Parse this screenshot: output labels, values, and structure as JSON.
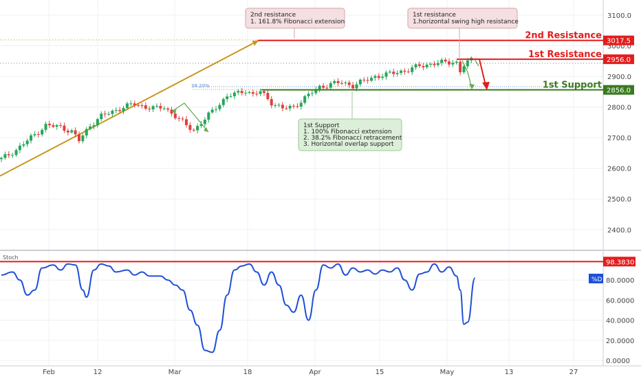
{
  "chart_data": [
    {
      "type": "candlestick",
      "ylim": [
        2350,
        3130
      ],
      "y_ticks": [
        "3100.0",
        "3000.0",
        "2900.0",
        "2800.0",
        "2700.0",
        "2600.0",
        "2500.0",
        "2400.0"
      ],
      "x_ticks": [
        "Feb",
        "12",
        "Mar",
        "18",
        "Apr",
        "15",
        "May",
        "13",
        "27"
      ],
      "price_path": [
        [
          0,
          2630
        ],
        [
          4,
          2660
        ],
        [
          8,
          2700
        ],
        [
          12,
          2740
        ],
        [
          16,
          2735
        ],
        [
          19,
          2720
        ],
        [
          21,
          2690
        ],
        [
          24,
          2740
        ],
        [
          27,
          2770
        ],
        [
          30,
          2785
        ],
        [
          33,
          2800
        ],
        [
          36,
          2810
        ],
        [
          39,
          2800
        ],
        [
          42,
          2795
        ],
        [
          44,
          2800
        ],
        [
          47,
          2770
        ],
        [
          50,
          2740
        ],
        [
          52,
          2725
        ],
        [
          55,
          2760
        ],
        [
          58,
          2800
        ],
        [
          61,
          2835
        ],
        [
          64,
          2845
        ],
        [
          66,
          2855
        ],
        [
          68,
          2840
        ],
        [
          70,
          2850
        ],
        [
          73,
          2815
        ],
        [
          76,
          2795
        ],
        [
          79,
          2800
        ],
        [
          82,
          2830
        ],
        [
          86,
          2865
        ],
        [
          89,
          2875
        ],
        [
          92,
          2880
        ],
        [
          95,
          2870
        ],
        [
          98,
          2885
        ],
        [
          101,
          2900
        ],
        [
          104,
          2905
        ],
        [
          107,
          2915
        ],
        [
          110,
          2920
        ],
        [
          113,
          2935
        ],
        [
          116,
          2940
        ],
        [
          119,
          2945
        ],
        [
          122,
          2948
        ],
        [
          123,
          2945
        ],
        [
          124,
          2915
        ],
        [
          125,
          2935
        ],
        [
          127,
          2955
        ]
      ],
      "levels": [
        {
          "name": "2nd Resistance",
          "value": 3017.5,
          "label": "3017.5",
          "color": "#e21d1d"
        },
        {
          "name": "1st Resistance",
          "value": 2956.0,
          "label": "2956.0",
          "color": "#e21d1d"
        },
        {
          "name": "1st Support",
          "value": 2856.0,
          "label": "2856.0",
          "color": "#3a7a1f"
        }
      ],
      "fib_label": "38.20%",
      "trendline": {
        "from": [
          0,
          2575
        ],
        "to": [
          69,
          3017.5
        ],
        "color": "#c8961e"
      }
    },
    {
      "type": "line",
      "name": "Stoch",
      "legend": "%D",
      "ylim": [
        0,
        102
      ],
      "y_ticks": [
        "80.0000",
        "60.0000",
        "40.0000",
        "20.0000",
        "0.0000"
      ],
      "level": {
        "value": 98.383,
        "label": "98.3830"
      },
      "values": [
        [
          0,
          85
        ],
        [
          3,
          88
        ],
        [
          5,
          80
        ],
        [
          7,
          65
        ],
        [
          9,
          70
        ],
        [
          11,
          92
        ],
        [
          14,
          95
        ],
        [
          16,
          90
        ],
        [
          18,
          96
        ],
        [
          20,
          95
        ],
        [
          22,
          70
        ],
        [
          23,
          63
        ],
        [
          25,
          90
        ],
        [
          27,
          96
        ],
        [
          29,
          94
        ],
        [
          31,
          88
        ],
        [
          34,
          90
        ],
        [
          36,
          85
        ],
        [
          38,
          88
        ],
        [
          40,
          84
        ],
        [
          43,
          84
        ],
        [
          45,
          80
        ],
        [
          47,
          75
        ],
        [
          49,
          70
        ],
        [
          51,
          50
        ],
        [
          53,
          35
        ],
        [
          55,
          10
        ],
        [
          57,
          8
        ],
        [
          59,
          30
        ],
        [
          61,
          65
        ],
        [
          63,
          90
        ],
        [
          65,
          94
        ],
        [
          67,
          96
        ],
        [
          69,
          88
        ],
        [
          71,
          75
        ],
        [
          73,
          88
        ],
        [
          75,
          75
        ],
        [
          77,
          55
        ],
        [
          79,
          48
        ],
        [
          81,
          65
        ],
        [
          83,
          40
        ],
        [
          85,
          70
        ],
        [
          87,
          95
        ],
        [
          89,
          92
        ],
        [
          91,
          96
        ],
        [
          93,
          85
        ],
        [
          95,
          92
        ],
        [
          97,
          88
        ],
        [
          99,
          90
        ],
        [
          101,
          86
        ],
        [
          103,
          90
        ],
        [
          105,
          88
        ],
        [
          107,
          92
        ],
        [
          109,
          80
        ],
        [
          111,
          70
        ],
        [
          113,
          86
        ],
        [
          115,
          88
        ],
        [
          117,
          96
        ],
        [
          119,
          88
        ],
        [
          121,
          93
        ],
        [
          123,
          84
        ],
        [
          124,
          70
        ],
        [
          125,
          36
        ],
        [
          126,
          38
        ],
        [
          128,
          82
        ]
      ]
    }
  ],
  "annotations": {
    "second_resistance_title": "2nd resistance",
    "second_resistance_detail": "1. 161.8% Fibonacci extension",
    "first_resistance_title": "1st resistance",
    "first_resistance_detail": "1.horizontal swing high resistance",
    "first_support_title": "1st Support",
    "first_support_1": "1. 100% Fibonacci extension",
    "first_support_2": "2. 38.2% Fibonacci retracement",
    "first_support_3": "3. Horizontal overlap support"
  }
}
